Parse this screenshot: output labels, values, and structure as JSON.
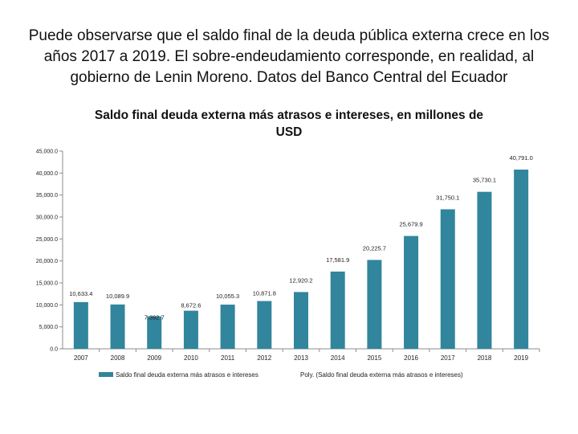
{
  "slide": {
    "heading": "Puede observarse que el saldo final de la deuda pública externa crece en los años 2017 a 2019. El sobre-endeudamiento corresponde, en realidad, al gobierno de Lenin Moreno. Datos del Banco Central del Ecuador"
  },
  "chart_data": {
    "type": "bar",
    "title": "Saldo final deuda externa más atrasos e intereses, en millones de USD",
    "categories": [
      "2007",
      "2008",
      "2009",
      "2010",
      "2011",
      "2012",
      "2013",
      "2014",
      "2015",
      "2016",
      "2017",
      "2018",
      "2019"
    ],
    "series": [
      {
        "name": "Saldo final deuda externa más atrasos e intereses",
        "values": [
          10633.4,
          10089.9,
          7392.7,
          8672.6,
          10055.3,
          10871.8,
          12920.2,
          17581.9,
          20225.7,
          25679.9,
          31750.1,
          35730.1,
          40791.0
        ],
        "labels": [
          "10,633.4",
          "10,089.9",
          "7,392.7",
          "8,672.6",
          "10,055.3",
          "10,871.8",
          "12,920.2",
          "17,581.9",
          "20,225.7",
          "25,679.9",
          "31,750.1",
          "35,730.1",
          "40,791.0"
        ],
        "color": "#31859c"
      }
    ],
    "trendline_label": "Poly. (Saldo final deuda externa más atrasos e intereses)",
    "ylim": [
      0,
      45000
    ],
    "yticks": [
      0,
      5000,
      10000,
      15000,
      20000,
      25000,
      30000,
      35000,
      40000,
      45000
    ],
    "ytick_labels": [
      "0.0",
      "5,000.0",
      "10,000.0",
      "15,000.0",
      "20,000.0",
      "25,000.0",
      "30,000.0",
      "35,000.0",
      "40,000.0",
      "45,000.0"
    ],
    "legend_position": "bottom",
    "grid": false
  }
}
